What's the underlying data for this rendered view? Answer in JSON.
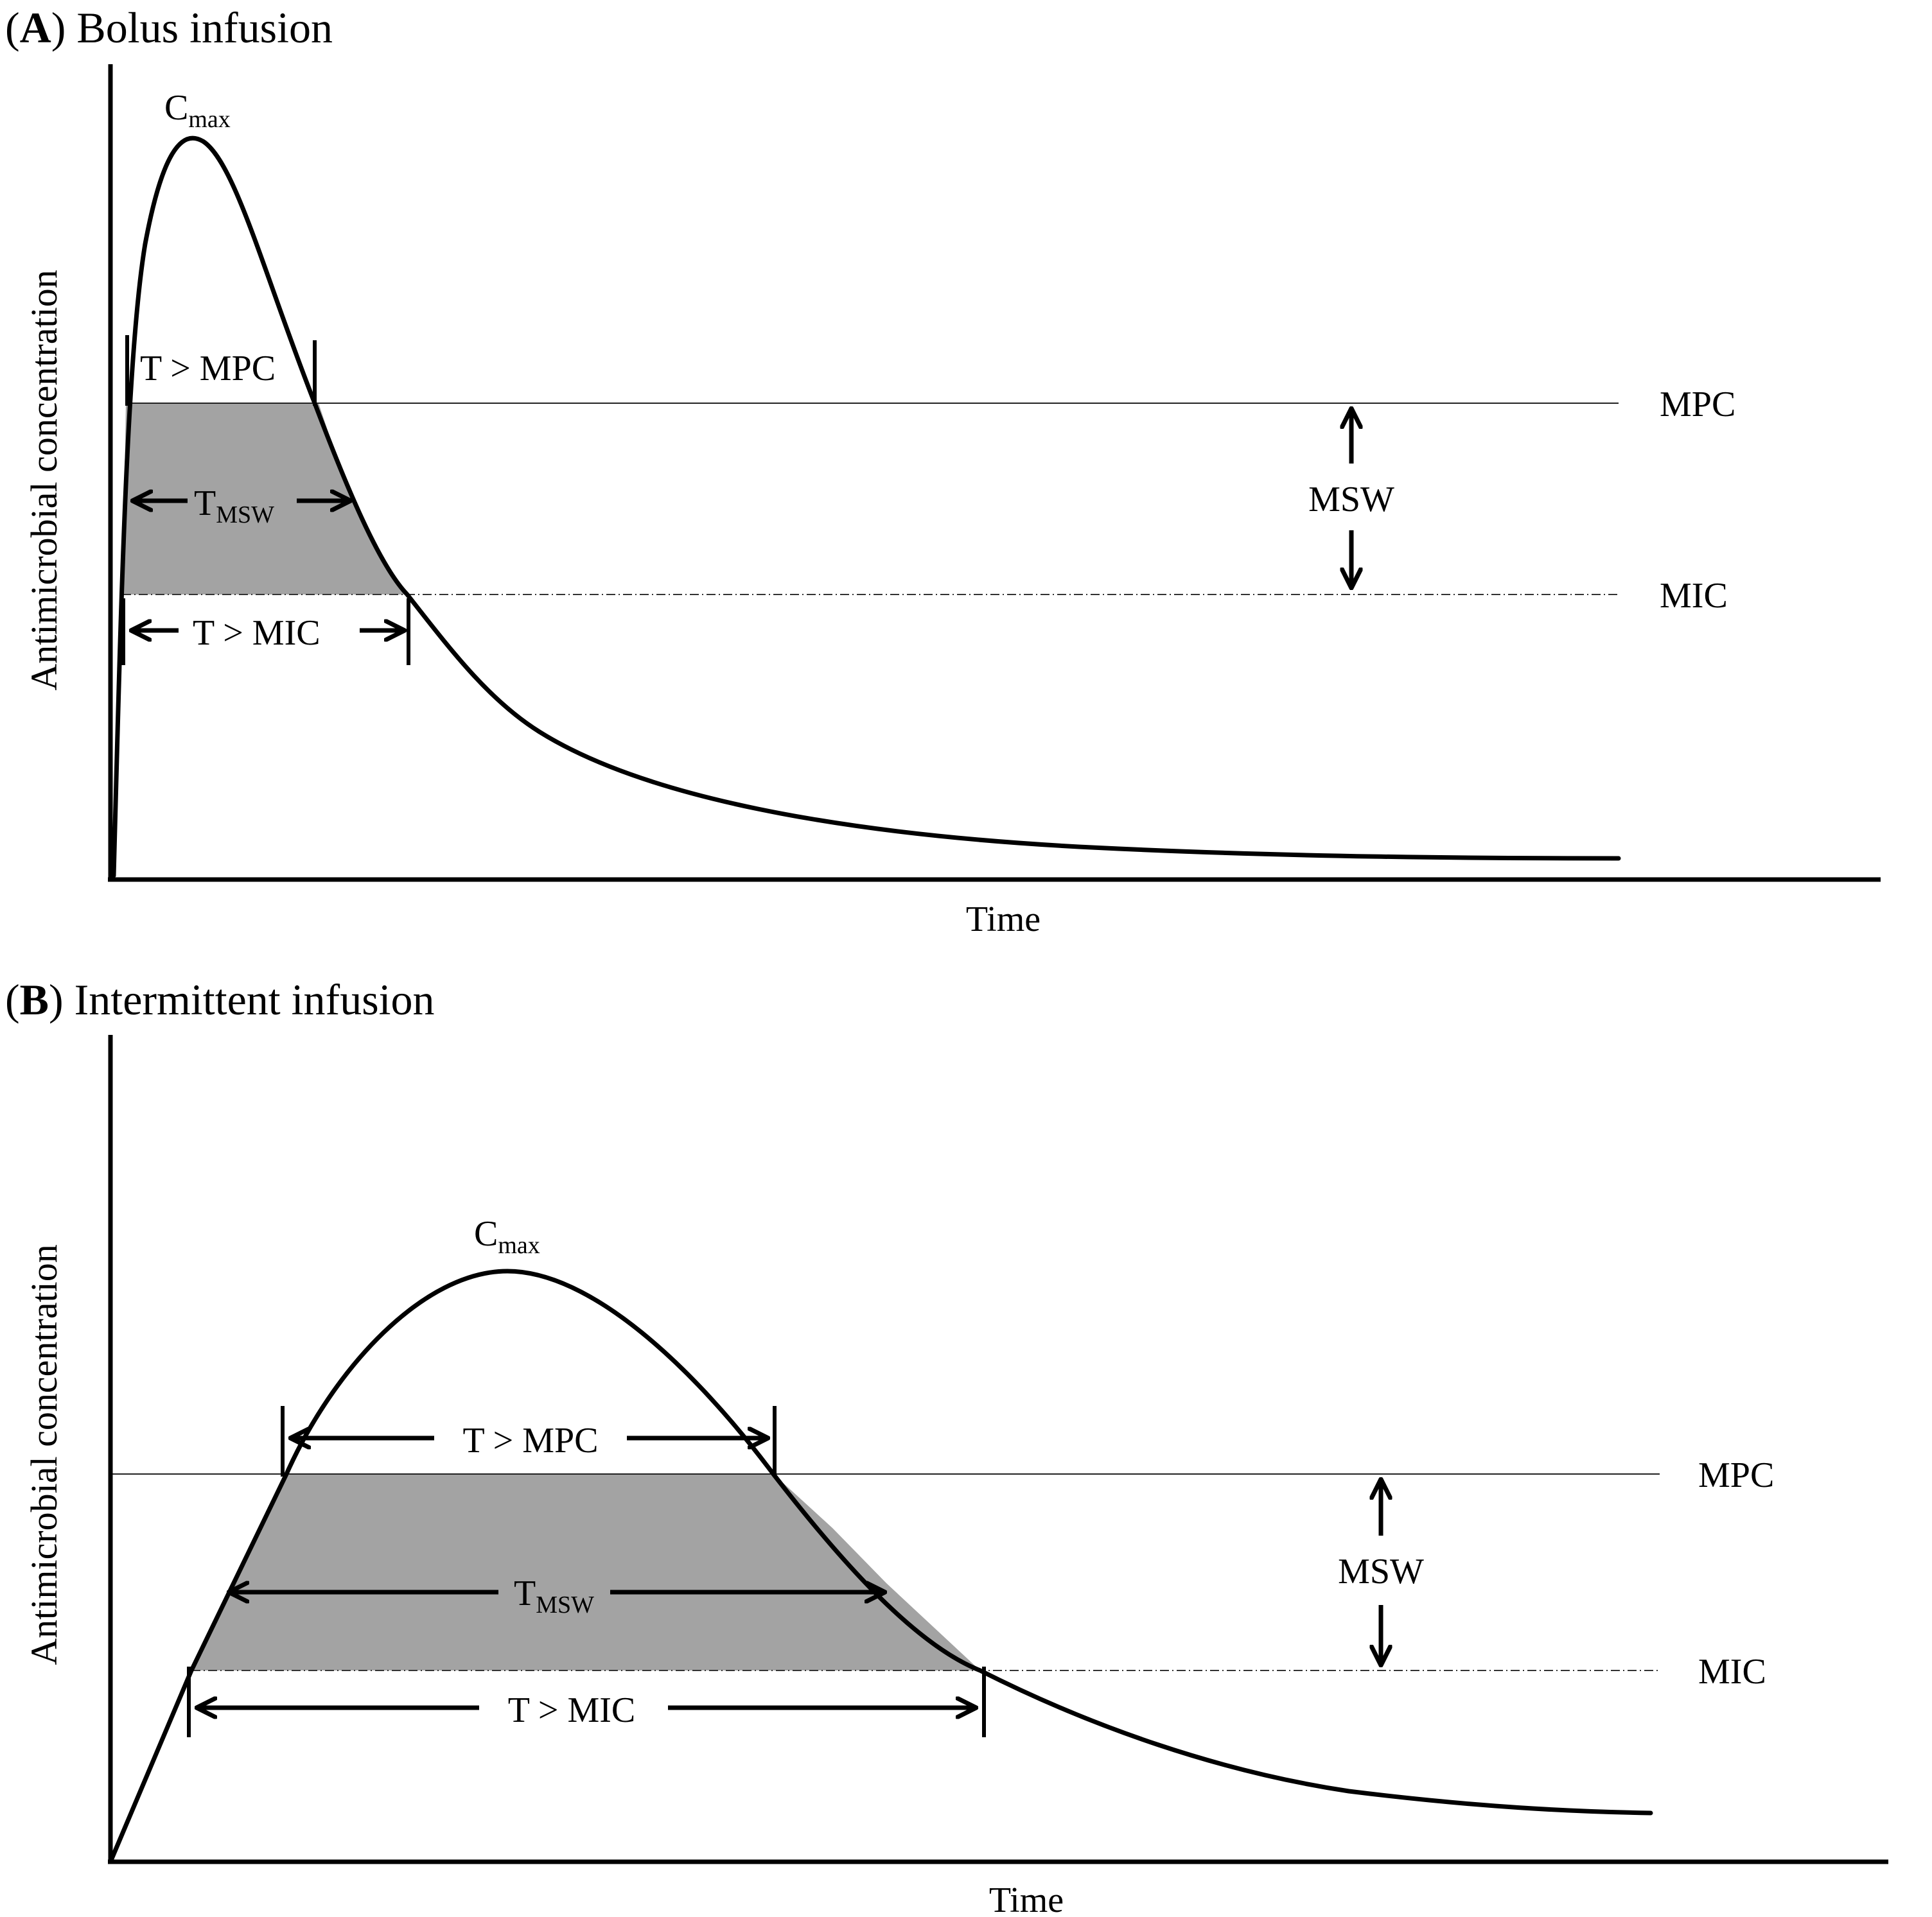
{
  "panels": [
    {
      "id": "A",
      "letter": "A",
      "title_rest": ") Bolus infusion",
      "y_axis_label": "Antimicrobial concentration",
      "x_axis_label": "Time",
      "cmax_main": "C",
      "cmax_sub": "max",
      "threshold_upper": "MPC",
      "threshold_lower": "MIC",
      "window_label": "MSW",
      "t_above_mpc": "T > MPC",
      "t_msw_main": "T",
      "t_msw_sub": "MSW",
      "t_above_mic": "T > MIC"
    },
    {
      "id": "B",
      "letter": "B",
      "title_rest": ") Intermittent infusion",
      "y_axis_label": "Antimicrobial concentration",
      "x_axis_label": "Time",
      "cmax_main": "C",
      "cmax_sub": "max",
      "threshold_upper": "MPC",
      "threshold_lower": "MIC",
      "window_label": "MSW",
      "t_above_mpc": "T > MPC",
      "t_msw_main": "T",
      "t_msw_sub": "MSW",
      "t_above_mic": "T > MIC"
    }
  ],
  "open_paren": "(",
  "colors": {
    "curve": "#000000",
    "shade": "#a3a3a3",
    "axis": "#000000"
  }
}
